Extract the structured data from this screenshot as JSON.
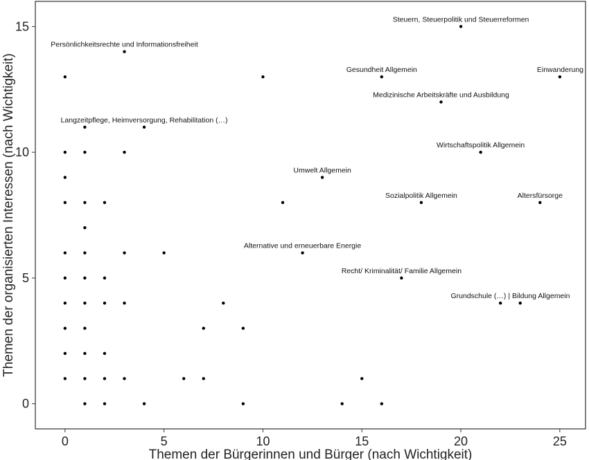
{
  "chart_data": {
    "type": "scatter",
    "title": "",
    "xlabel": "Themen der Bürgerinnen und Bürger (nach Wichtigkeit)",
    "ylabel": "Themen der organisierten Interessen (nach Wichtigkeit)",
    "xlim": [
      -1.5,
      26.3
    ],
    "ylim": [
      -1.0,
      16.0
    ],
    "xticks": [
      0,
      5,
      10,
      15,
      20,
      25
    ],
    "yticks": [
      0,
      5,
      10,
      15
    ],
    "grid": false,
    "points": [
      {
        "x": 0,
        "y": 13
      },
      {
        "x": 0,
        "y": 10
      },
      {
        "x": 0,
        "y": 9
      },
      {
        "x": 0,
        "y": 8
      },
      {
        "x": 0,
        "y": 6
      },
      {
        "x": 0,
        "y": 5
      },
      {
        "x": 0,
        "y": 4
      },
      {
        "x": 0,
        "y": 3
      },
      {
        "x": 0,
        "y": 2
      },
      {
        "x": 0,
        "y": 1
      },
      {
        "x": 1,
        "y": 11
      },
      {
        "x": 1,
        "y": 10
      },
      {
        "x": 1,
        "y": 8
      },
      {
        "x": 1,
        "y": 7
      },
      {
        "x": 1,
        "y": 6
      },
      {
        "x": 1,
        "y": 5
      },
      {
        "x": 1,
        "y": 4
      },
      {
        "x": 1,
        "y": 3
      },
      {
        "x": 1,
        "y": 2
      },
      {
        "x": 1,
        "y": 1
      },
      {
        "x": 1,
        "y": 0
      },
      {
        "x": 2,
        "y": 8
      },
      {
        "x": 2,
        "y": 5
      },
      {
        "x": 2,
        "y": 4
      },
      {
        "x": 2,
        "y": 2
      },
      {
        "x": 2,
        "y": 1
      },
      {
        "x": 2,
        "y": 0
      },
      {
        "x": 3,
        "y": 14,
        "label": "Persönlichkeitsrechte und Informationsfreiheit"
      },
      {
        "x": 3,
        "y": 10
      },
      {
        "x": 3,
        "y": 6
      },
      {
        "x": 3,
        "y": 4
      },
      {
        "x": 3,
        "y": 1
      },
      {
        "x": 4,
        "y": 11,
        "label": "Langzeitpflege, Heimversorgung, Rehabilitation (…)"
      },
      {
        "x": 4,
        "y": 0
      },
      {
        "x": 5,
        "y": 6
      },
      {
        "x": 6,
        "y": 1
      },
      {
        "x": 7,
        "y": 3
      },
      {
        "x": 7,
        "y": 1
      },
      {
        "x": 8,
        "y": 4
      },
      {
        "x": 9,
        "y": 3
      },
      {
        "x": 9,
        "y": 0
      },
      {
        "x": 10,
        "y": 13
      },
      {
        "x": 11,
        "y": 8
      },
      {
        "x": 12,
        "y": 6,
        "label": "Alternative und erneuerbare Energie"
      },
      {
        "x": 13,
        "y": 9,
        "label": "Umwelt Allgemein"
      },
      {
        "x": 14,
        "y": 0
      },
      {
        "x": 15,
        "y": 1
      },
      {
        "x": 16,
        "y": 13,
        "label": "Gesundheit Allgemein"
      },
      {
        "x": 16,
        "y": 0
      },
      {
        "x": 17,
        "y": 5,
        "label": "Recht/ Kriminalität/ Familie Allgemein"
      },
      {
        "x": 18,
        "y": 8,
        "label": "Sozialpolitik Allgemein"
      },
      {
        "x": 19,
        "y": 12,
        "label": "Medizinische Arbeitskräfte und Ausbildung"
      },
      {
        "x": 20,
        "y": 15,
        "label": "Steuern, Steuerpolitik und Steuerreformen"
      },
      {
        "x": 21,
        "y": 10,
        "label": "Wirtschaftspolitik Allgemein"
      },
      {
        "x": 22,
        "y": 4
      },
      {
        "x": 23,
        "y": 4
      },
      {
        "x": 24,
        "y": 8,
        "label": "Altersfürsorge"
      },
      {
        "x": 25,
        "y": 13,
        "label": "Einwanderung"
      }
    ],
    "annotations": [
      {
        "text": "Grundschule (…) | Bildung Allgemein",
        "x": 22.5,
        "y": 4
      }
    ]
  }
}
